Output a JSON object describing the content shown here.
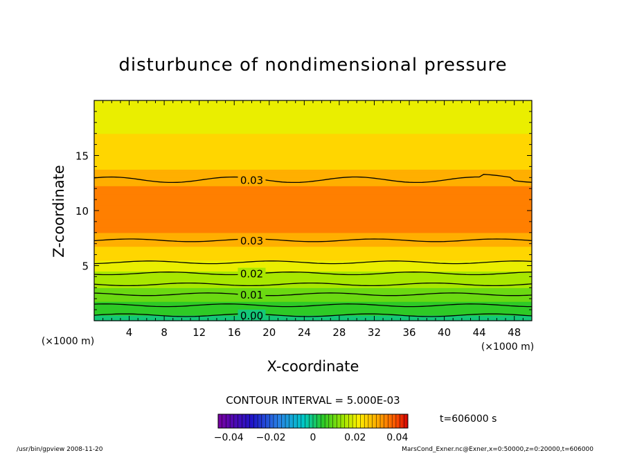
{
  "chart_data": {
    "type": "heatmap",
    "title": "disturbunce of nondimensional pressure",
    "xlabel": "X-coordinate",
    "ylabel": "Z-coordinate",
    "x_unit_left": "(×1000 m)",
    "x_unit_right": "(×1000 m)",
    "xlim": [
      0,
      50
    ],
    "ylim": [
      0,
      20
    ],
    "x_ticks": [
      4,
      8,
      12,
      16,
      20,
      24,
      28,
      32,
      36,
      40,
      44,
      48
    ],
    "y_ticks": [
      5,
      10,
      15
    ],
    "contour_interval_text": "CONTOUR INTERVAL = 5.000E-03",
    "time_text": "t=606000 s",
    "colorbar": {
      "min": -0.045,
      "max": 0.045,
      "ticks": [
        -0.04,
        -0.02,
        0,
        0.02,
        0.04
      ],
      "tick_labels": [
        "−0.04",
        "−0.02",
        "0",
        "0.02",
        "0.04"
      ]
    },
    "vertical_profile": {
      "z": [
        0,
        0.5,
        1,
        1.5,
        2,
        2.5,
        3,
        3.5,
        4,
        4.5,
        5,
        5.5,
        6,
        6.5,
        7,
        7.5,
        8,
        10,
        12,
        12.8,
        13.5,
        15,
        16.5,
        18,
        20
      ],
      "value": [
        0.0,
        0.002,
        0.004,
        0.006,
        0.008,
        0.01,
        0.012,
        0.014,
        0.016,
        0.018,
        0.02,
        0.022,
        0.024,
        0.026,
        0.028,
        0.03,
        0.033,
        0.036,
        0.034,
        0.03,
        0.028,
        0.025,
        0.023,
        0.021,
        0.02
      ]
    },
    "contour_labels": [
      {
        "text": "0.00",
        "x": 18,
        "z": 0.5
      },
      {
        "text": "0.01",
        "x": 18,
        "z": 2.4
      },
      {
        "text": "0.02",
        "x": 18,
        "z": 4.3
      },
      {
        "text": "0.03",
        "x": 18,
        "z": 7.3
      },
      {
        "text": "0.03",
        "x": 18,
        "z": 12.8
      }
    ],
    "contour_lines_z": [
      0.5,
      1.4,
      2.4,
      3.3,
      4.3,
      5.3,
      7.3,
      12.8
    ]
  },
  "footer_left": "/usr/bin/gpview   2008-11-20",
  "footer_right": "MarsCond_Exner.nc@Exner,x=0:50000,z=0:20000,t=606000"
}
